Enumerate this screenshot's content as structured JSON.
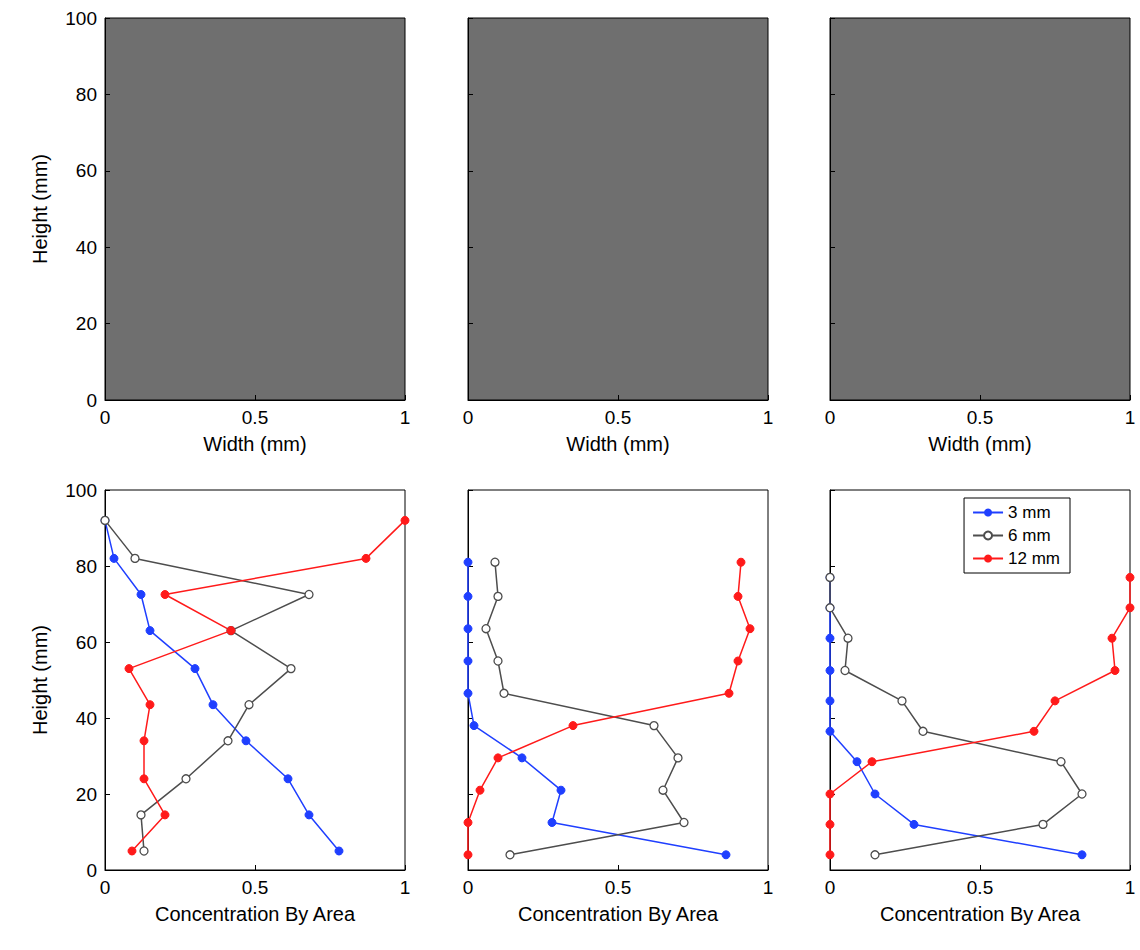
{
  "chart_data": [
    {
      "type": "image",
      "xlabel": "Width (mm)",
      "ylabel": "Height (mm)",
      "xlim": [
        0,
        1
      ],
      "ylim": [
        0,
        100
      ],
      "xticks": [
        0,
        0.5,
        1
      ],
      "yticks": [
        0,
        20,
        40,
        60,
        80,
        100
      ]
    },
    {
      "type": "image",
      "xlabel": "Width (mm)",
      "tick_labels": "x",
      "xlim": [
        0,
        1
      ],
      "ylim": [
        0,
        100
      ],
      "xticks": [
        0,
        0.5,
        1
      ],
      "yticks": [
        0,
        20,
        40,
        60,
        80,
        100
      ]
    },
    {
      "type": "image",
      "xlabel": "Width (mm)",
      "tick_labels": "x",
      "xlim": [
        0,
        1
      ],
      "ylim": [
        0,
        100
      ],
      "xticks": [
        0,
        0.5,
        1
      ],
      "yticks": [
        0,
        20,
        40,
        60,
        80,
        100
      ]
    },
    {
      "type": "line",
      "xlabel": "Concentration By Area",
      "ylabel": "Height (mm)",
      "xlim": [
        0,
        1
      ],
      "ylim": [
        0,
        100
      ],
      "xticks": [
        0,
        0.5,
        1
      ],
      "yticks": [
        0,
        20,
        40,
        60,
        80,
        100
      ],
      "series": [
        {
          "name": "3 mm",
          "color": "#1f3fff",
          "marker": "circle",
          "x": [
            0,
            0.03,
            0.12,
            0.15,
            0.3,
            0.36,
            0.47,
            0.61,
            0.68,
            0.78
          ],
          "y": [
            92,
            82,
            72.5,
            63,
            53,
            43.5,
            34,
            24,
            14.5,
            5
          ]
        },
        {
          "name": "6 mm",
          "color": "#4d4d4d",
          "marker": "open_circle",
          "x": [
            0,
            0.1,
            0.68,
            0.42,
            0.62,
            0.48,
            0.41,
            0.27,
            0.12,
            0.13
          ],
          "y": [
            92,
            82,
            72.5,
            63,
            53,
            43.5,
            34,
            24,
            14.5,
            5
          ]
        },
        {
          "name": "12 mm",
          "color": "#ff1a1a",
          "marker": "circle",
          "x": [
            1.0,
            0.87,
            0.2,
            0.42,
            0.08,
            0.15,
            0.13,
            0.13,
            0.2,
            0.09
          ],
          "y": [
            92,
            82,
            72.5,
            63,
            53,
            43.5,
            34,
            24,
            14.5,
            5
          ]
        }
      ]
    },
    {
      "type": "line",
      "xlabel": "Concentration By Area",
      "tick_labels": "x",
      "xlim": [
        0,
        1
      ],
      "ylim": [
        0,
        100
      ],
      "xticks": [
        0,
        0.5,
        1
      ],
      "yticks": [
        0,
        20,
        40,
        60,
        80,
        100
      ],
      "series": [
        {
          "name": "3 mm",
          "color": "#1f3fff",
          "marker": "circle",
          "x": [
            0,
            0,
            0,
            0,
            0,
            0.02,
            0.18,
            0.31,
            0.28,
            0.86
          ],
          "y": [
            81,
            72,
            63.5,
            55,
            46.5,
            38,
            29.5,
            21,
            12.5,
            4
          ]
        },
        {
          "name": "6 mm",
          "color": "#4d4d4d",
          "marker": "open_circle",
          "x": [
            0.09,
            0.1,
            0.06,
            0.1,
            0.12,
            0.62,
            0.7,
            0.65,
            0.72,
            0.14
          ],
          "y": [
            81,
            72,
            63.5,
            55,
            46.5,
            38,
            29.5,
            21,
            12.5,
            4
          ]
        },
        {
          "name": "12 mm",
          "color": "#ff1a1a",
          "marker": "circle",
          "x": [
            0.91,
            0.9,
            0.94,
            0.9,
            0.87,
            0.35,
            0.1,
            0.04,
            0,
            0
          ],
          "y": [
            81,
            72,
            63.5,
            55,
            46.5,
            38,
            29.5,
            21,
            12.5,
            4
          ]
        }
      ]
    },
    {
      "type": "line",
      "xlabel": "Concentration By Area",
      "tick_labels": "x",
      "legend": "upper right",
      "xlim": [
        0,
        1
      ],
      "ylim": [
        0,
        100
      ],
      "xticks": [
        0,
        0.5,
        1
      ],
      "yticks": [
        0,
        20,
        40,
        60,
        80,
        100
      ],
      "series": [
        {
          "name": "3 mm",
          "color": "#1f3fff",
          "marker": "circle",
          "x": [
            0,
            0,
            0,
            0,
            0,
            0,
            0.09,
            0.15,
            0.28,
            0.84
          ],
          "y": [
            77,
            69,
            61,
            52.5,
            44.5,
            36.5,
            28.5,
            20,
            12,
            4
          ]
        },
        {
          "name": "6 mm",
          "color": "#4d4d4d",
          "marker": "open_circle",
          "x": [
            0,
            0,
            0.06,
            0.05,
            0.24,
            0.31,
            0.77,
            0.84,
            0.71,
            0.15
          ],
          "y": [
            77,
            69,
            61,
            52.5,
            44.5,
            36.5,
            28.5,
            20,
            12,
            4
          ]
        },
        {
          "name": "12 mm",
          "color": "#ff1a1a",
          "marker": "circle",
          "x": [
            1.0,
            1.0,
            0.94,
            0.95,
            0.75,
            0.68,
            0.14,
            0,
            0,
            0
          ],
          "y": [
            77,
            69,
            61,
            52.5,
            44.5,
            36.5,
            28.5,
            20,
            12,
            4
          ]
        }
      ]
    }
  ]
}
